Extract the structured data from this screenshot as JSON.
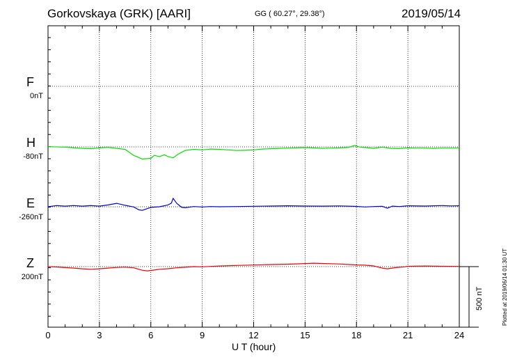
{
  "header": {
    "station": "Gorkovskaya (GRK)  [AARI]",
    "coords": "GG ( 60.27°,  29.38°)",
    "date": "2019/05/14"
  },
  "footer": {
    "xlabel": "U T (hour)",
    "scale_label": "500 nT",
    "plotted": "Plotted at 2019/06/14 01:30 UT"
  },
  "chart_data": {
    "type": "line",
    "x_unit": "hour UT",
    "xlim": [
      0,
      24
    ],
    "x_ticks": [
      0,
      3,
      6,
      9,
      12,
      15,
      18,
      21,
      24
    ],
    "scale_bar_nT": 500,
    "grid": true,
    "series": [
      {
        "name": "F",
        "baseline": "0nT",
        "color": "#ffa500",
        "points": []
      },
      {
        "name": "H",
        "baseline": "-80nT",
        "color": "#00e000",
        "points": [
          [
            0,
            -78
          ],
          [
            1,
            -82
          ],
          [
            1.5,
            -88
          ],
          [
            2,
            -92
          ],
          [
            2.5,
            -95
          ],
          [
            3,
            -88
          ],
          [
            3.5,
            -84
          ],
          [
            4,
            -92
          ],
          [
            4.5,
            -100
          ],
          [
            5,
            -150
          ],
          [
            5.5,
            -180
          ],
          [
            6,
            -175
          ],
          [
            6.2,
            -150
          ],
          [
            6.5,
            -160
          ],
          [
            6.8,
            -145
          ],
          [
            7,
            -160
          ],
          [
            7.3,
            -170
          ],
          [
            7.6,
            -140
          ],
          [
            8,
            -110
          ],
          [
            8.5,
            -100
          ],
          [
            9,
            -105
          ],
          [
            9.5,
            -98
          ],
          [
            10,
            -100
          ],
          [
            10.5,
            -105
          ],
          [
            11,
            -110
          ],
          [
            11.5,
            -108
          ],
          [
            12,
            -105
          ],
          [
            12.5,
            -98
          ],
          [
            13,
            -95
          ],
          [
            13.5,
            -92
          ],
          [
            14,
            -90
          ],
          [
            14.5,
            -88
          ],
          [
            15,
            -86
          ],
          [
            15.5,
            -88
          ],
          [
            16,
            -92
          ],
          [
            16.5,
            -90
          ],
          [
            17,
            -88
          ],
          [
            17.5,
            -85
          ],
          [
            17.9,
            -68
          ],
          [
            18.2,
            -82
          ],
          [
            18.5,
            -85
          ],
          [
            19,
            -92
          ],
          [
            19.5,
            -82
          ],
          [
            20,
            -92
          ],
          [
            20.5,
            -94
          ],
          [
            21,
            -88
          ],
          [
            21.5,
            -90
          ],
          [
            22,
            -90
          ],
          [
            22.5,
            -92
          ],
          [
            23,
            -90
          ],
          [
            24,
            -90
          ]
        ]
      },
      {
        "name": "E",
        "baseline": "-260nT",
        "color": "#0000dd",
        "points": [
          [
            0,
            -260
          ],
          [
            0.5,
            -250
          ],
          [
            1,
            -255
          ],
          [
            1.5,
            -250
          ],
          [
            2,
            -255
          ],
          [
            2.5,
            -250
          ],
          [
            3,
            -255
          ],
          [
            3.5,
            -245
          ],
          [
            4,
            -232
          ],
          [
            4.5,
            -248
          ],
          [
            5,
            -262
          ],
          [
            5.3,
            -285
          ],
          [
            5.5,
            -290
          ],
          [
            5.8,
            -275
          ],
          [
            6,
            -265
          ],
          [
            6.5,
            -260
          ],
          [
            7,
            -245
          ],
          [
            7.2,
            -230
          ],
          [
            7.3,
            -190
          ],
          [
            7.5,
            -230
          ],
          [
            7.8,
            -265
          ],
          [
            8,
            -268
          ],
          [
            8.5,
            -258
          ],
          [
            9,
            -262
          ],
          [
            9.5,
            -258
          ],
          [
            10,
            -260
          ],
          [
            11,
            -258
          ],
          [
            12,
            -256
          ],
          [
            13,
            -254
          ],
          [
            14,
            -252
          ],
          [
            15,
            -254
          ],
          [
            16,
            -255
          ],
          [
            17,
            -253
          ],
          [
            18,
            -257
          ],
          [
            18.5,
            -262
          ],
          [
            19,
            -258
          ],
          [
            19.5,
            -256
          ],
          [
            19.8,
            -272
          ],
          [
            20.1,
            -255
          ],
          [
            20.5,
            -258
          ],
          [
            21,
            -252
          ],
          [
            22,
            -254
          ],
          [
            23,
            -250
          ],
          [
            23.5,
            -253
          ],
          [
            24,
            -252
          ]
        ]
      },
      {
        "name": "Z",
        "baseline": "200nT",
        "color": "#ee0000",
        "points": [
          [
            0,
            200
          ],
          [
            0.5,
            197
          ],
          [
            1,
            192
          ],
          [
            1.5,
            188
          ],
          [
            2,
            182
          ],
          [
            2.5,
            178
          ],
          [
            3,
            182
          ],
          [
            3.5,
            188
          ],
          [
            4,
            193
          ],
          [
            4.5,
            196
          ],
          [
            5,
            190
          ],
          [
            5.5,
            170
          ],
          [
            5.8,
            165
          ],
          [
            6.2,
            172
          ],
          [
            6.5,
            178
          ],
          [
            7,
            183
          ],
          [
            7.5,
            190
          ],
          [
            8,
            195
          ],
          [
            8.5,
            200
          ],
          [
            9,
            198
          ],
          [
            9.5,
            202
          ],
          [
            10,
            205
          ],
          [
            11,
            210
          ],
          [
            12,
            213
          ],
          [
            13,
            217
          ],
          [
            14,
            220
          ],
          [
            15,
            225
          ],
          [
            15.5,
            228
          ],
          [
            16,
            226
          ],
          [
            17,
            222
          ],
          [
            18,
            214
          ],
          [
            18.5,
            212
          ],
          [
            19,
            206
          ],
          [
            19.5,
            188
          ],
          [
            19.8,
            182
          ],
          [
            20.3,
            192
          ],
          [
            20.8,
            198
          ],
          [
            21,
            203
          ],
          [
            22,
            205
          ],
          [
            23,
            203
          ],
          [
            24,
            202
          ]
        ]
      }
    ]
  }
}
